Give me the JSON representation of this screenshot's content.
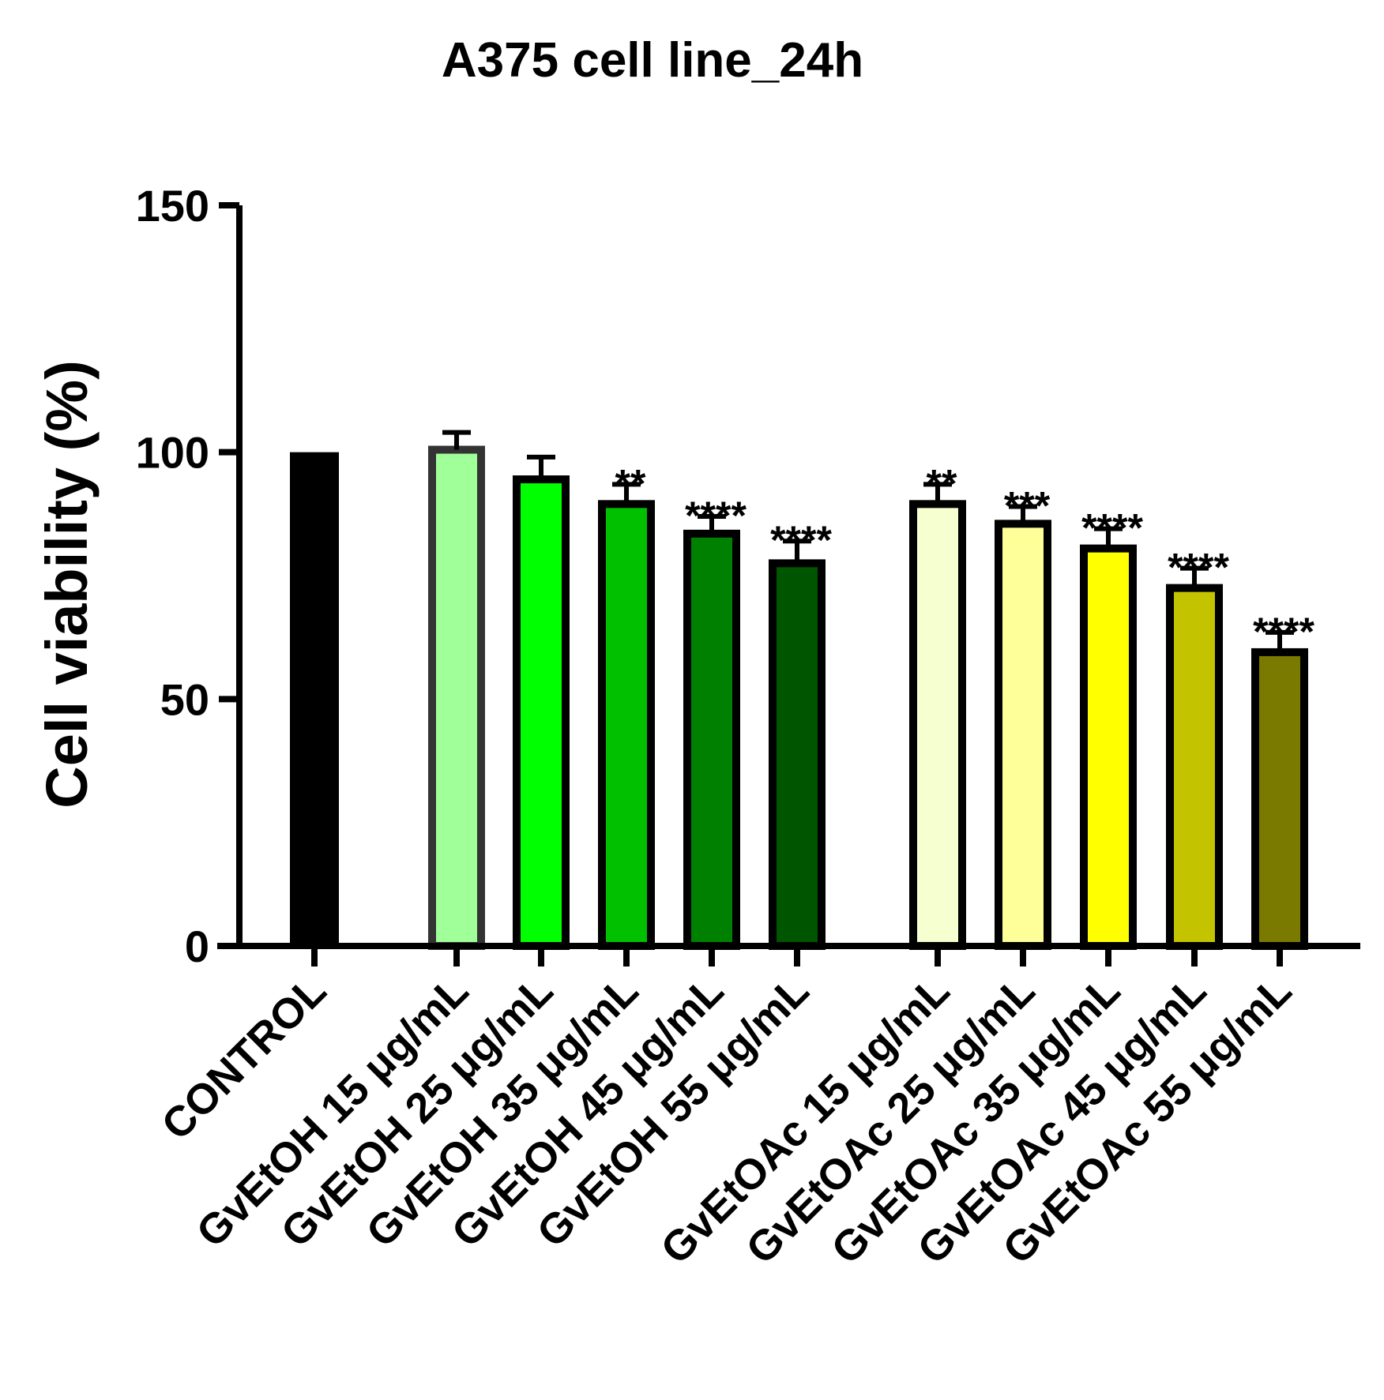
{
  "chart_data": {
    "type": "bar",
    "title": "A375 cell line_24h",
    "xlabel": "",
    "ylabel": "Cell viability (%)",
    "ylim": [
      0,
      150
    ],
    "yticks": [
      "0",
      "50",
      "100",
      "150"
    ],
    "grid": false,
    "legend": "none",
    "categories": [
      "CONTROL",
      "GvEtOH 15 μg/mL",
      "GvEtOH 25 μg/mL",
      "GvEtOH 35 μg/mL",
      "GvEtOH 45 μg/mL",
      "GvEtOH 55 μg/mL",
      "GvEtOAc 15 μg/mL",
      "GvEtOAc 25 μg/mL",
      "GvEtOAc 35 μg/mL",
      "GvEtOAc 45 μg/mL",
      "GvEtOAc 55 μg/mL"
    ],
    "values": [
      100,
      100.5,
      94.5,
      89.5,
      83.5,
      77.5,
      89.5,
      85.5,
      80.5,
      72.5,
      59.5
    ],
    "errors": [
      0,
      3.5,
      4.5,
      4,
      3.5,
      4.5,
      4,
      3.5,
      4,
      4,
      4
    ],
    "significance": [
      "",
      "",
      "",
      "**",
      "****",
      "****",
      "**",
      "***",
      "****",
      "****",
      "****"
    ],
    "colors": [
      "#000000",
      "#a0ff98",
      "#00ff00",
      "#00c000",
      "#008000",
      "#005500",
      "#f5ffcf",
      "#ffff9a",
      "#ffff00",
      "#c3c300",
      "#7a7a00"
    ]
  }
}
